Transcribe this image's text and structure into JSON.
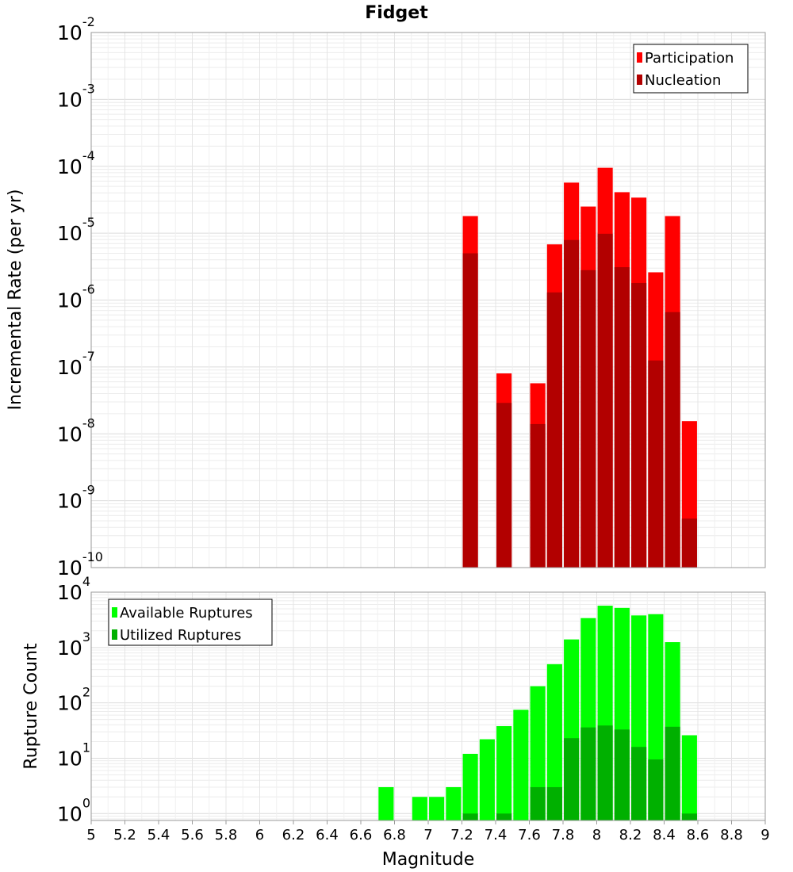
{
  "chart_data": [
    {
      "type": "bar",
      "title": "Fidget",
      "xlabel": "",
      "ylabel": "Incremental Rate (per yr)",
      "xlim": [
        5,
        9
      ],
      "ylim": [
        1e-10,
        0.01
      ],
      "y_scale": "log",
      "grid": true,
      "legend_position": "top-right",
      "y_tick_exponents": [
        -10,
        -9,
        -8,
        -7,
        -6,
        -5,
        -4,
        -3,
        -2
      ],
      "categories": [
        7.25,
        7.45,
        7.65,
        7.75,
        7.85,
        7.95,
        8.05,
        8.15,
        8.25,
        8.35,
        8.45,
        8.55
      ],
      "series": [
        {
          "name": "Participation",
          "color": "#ff0000",
          "values": [
            1.8e-05,
            8e-08,
            5.7e-08,
            6.8e-06,
            5.7e-05,
            2.5e-05,
            9.5e-05,
            4.1e-05,
            3.4e-05,
            2.6e-06,
            1.8e-05,
            1.55e-08
          ]
        },
        {
          "name": "Nucleation",
          "color": "#b20000",
          "values": [
            5e-06,
            2.9e-08,
            1.4e-08,
            1.3e-06,
            7.9e-06,
            2.8e-06,
            9.8e-06,
            3.1e-06,
            1.8e-06,
            1.25e-07,
            6.6e-07,
            5.4e-10
          ]
        }
      ]
    },
    {
      "type": "bar",
      "title": "",
      "xlabel": "Magnitude",
      "ylabel": "Rupture Count",
      "xlim": [
        5,
        9
      ],
      "ylim": [
        0.75,
        10000
      ],
      "y_scale": "log",
      "grid": true,
      "legend_position": "top-left",
      "y_tick_exponents": [
        0,
        1,
        2,
        3,
        4
      ],
      "x_ticks": [
        "5",
        "5.2",
        "5.4",
        "5.6",
        "5.8",
        "6",
        "6.2",
        "6.4",
        "6.6",
        "6.8",
        "7",
        "7.2",
        "7.4",
        "7.6",
        "7.8",
        "8",
        "8.2",
        "8.4",
        "8.6",
        "8.8",
        "9"
      ],
      "categories": [
        6.75,
        6.85,
        6.95,
        7.05,
        7.15,
        7.25,
        7.35,
        7.45,
        7.55,
        7.65,
        7.75,
        7.85,
        7.95,
        8.05,
        8.15,
        8.25,
        8.35,
        8.45,
        8.55
      ],
      "series": [
        {
          "name": "Available Ruptures",
          "color": "#00ff00",
          "values": [
            3,
            0,
            2,
            2,
            3,
            12,
            22,
            38,
            75,
            200,
            500,
            1400,
            3400,
            5700,
            5200,
            3800,
            4000,
            1250,
            26
          ]
        },
        {
          "name": "Utilized Ruptures",
          "color": "#00b000",
          "values": [
            0,
            0,
            0,
            0,
            0,
            1,
            0,
            1,
            0,
            3,
            3,
            23,
            36,
            39,
            33,
            16,
            9.5,
            37,
            1
          ]
        }
      ]
    }
  ]
}
